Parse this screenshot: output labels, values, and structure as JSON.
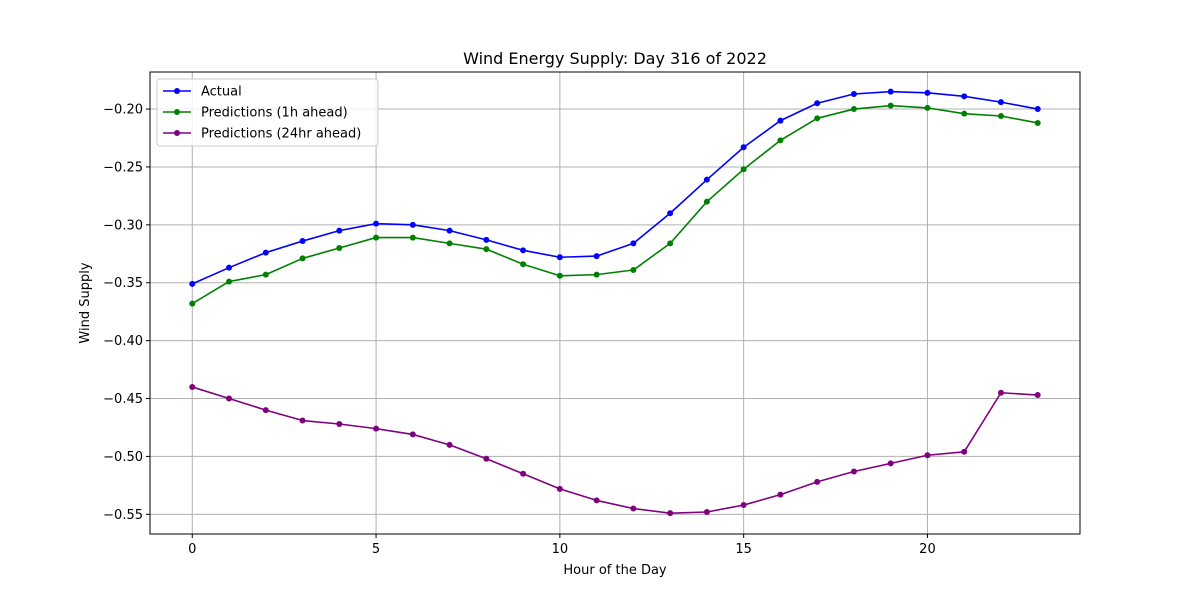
{
  "chart_data": {
    "type": "line",
    "title": "Wind Energy Supply: Day 316 of 2022",
    "xlabel": "Hour of the Day",
    "ylabel": "Wind Supply",
    "xlim": [
      -1.15,
      24.15
    ],
    "ylim": [
      -0.567,
      -0.168
    ],
    "xticks": [
      0,
      5,
      10,
      15,
      20
    ],
    "yticks": [
      -0.55,
      -0.5,
      -0.45,
      -0.4,
      -0.35,
      -0.3,
      -0.25,
      -0.2
    ],
    "xtick_labels": [
      "0",
      "5",
      "10",
      "15",
      "20"
    ],
    "ytick_labels": [
      "−0.55",
      "−0.50",
      "−0.45",
      "−0.40",
      "−0.35",
      "−0.30",
      "−0.25",
      "−0.20"
    ],
    "grid": true,
    "legend_position": "top-left",
    "x": [
      0,
      1,
      2,
      3,
      4,
      5,
      6,
      7,
      8,
      9,
      10,
      11,
      12,
      13,
      14,
      15,
      16,
      17,
      18,
      19,
      20,
      21,
      22,
      23
    ],
    "series": [
      {
        "name": "Actual",
        "color": "#0000ff",
        "values": [
          -0.351,
          -0.337,
          -0.324,
          -0.314,
          -0.305,
          -0.299,
          -0.3,
          -0.305,
          -0.313,
          -0.322,
          -0.328,
          -0.327,
          -0.316,
          -0.29,
          -0.261,
          -0.233,
          -0.21,
          -0.195,
          -0.187,
          -0.185,
          -0.186,
          -0.189,
          -0.194,
          -0.2
        ]
      },
      {
        "name": "Predictions (1h ahead)",
        "color": "#008000",
        "values": [
          -0.368,
          -0.349,
          -0.343,
          -0.329,
          -0.32,
          -0.311,
          -0.311,
          -0.316,
          -0.321,
          -0.334,
          -0.344,
          -0.343,
          -0.339,
          -0.316,
          -0.28,
          -0.252,
          -0.227,
          -0.208,
          -0.2,
          -0.197,
          -0.199,
          -0.204,
          -0.206,
          -0.212
        ]
      },
      {
        "name": "Predictions (24hr ahead)",
        "color": "#800080",
        "values": [
          -0.44,
          -0.45,
          -0.46,
          -0.469,
          -0.472,
          -0.476,
          -0.481,
          -0.49,
          -0.502,
          -0.515,
          -0.528,
          -0.538,
          -0.545,
          -0.549,
          -0.548,
          -0.542,
          -0.533,
          -0.522,
          -0.513,
          -0.506,
          -0.499,
          -0.496,
          -0.445,
          -0.447
        ]
      }
    ]
  }
}
